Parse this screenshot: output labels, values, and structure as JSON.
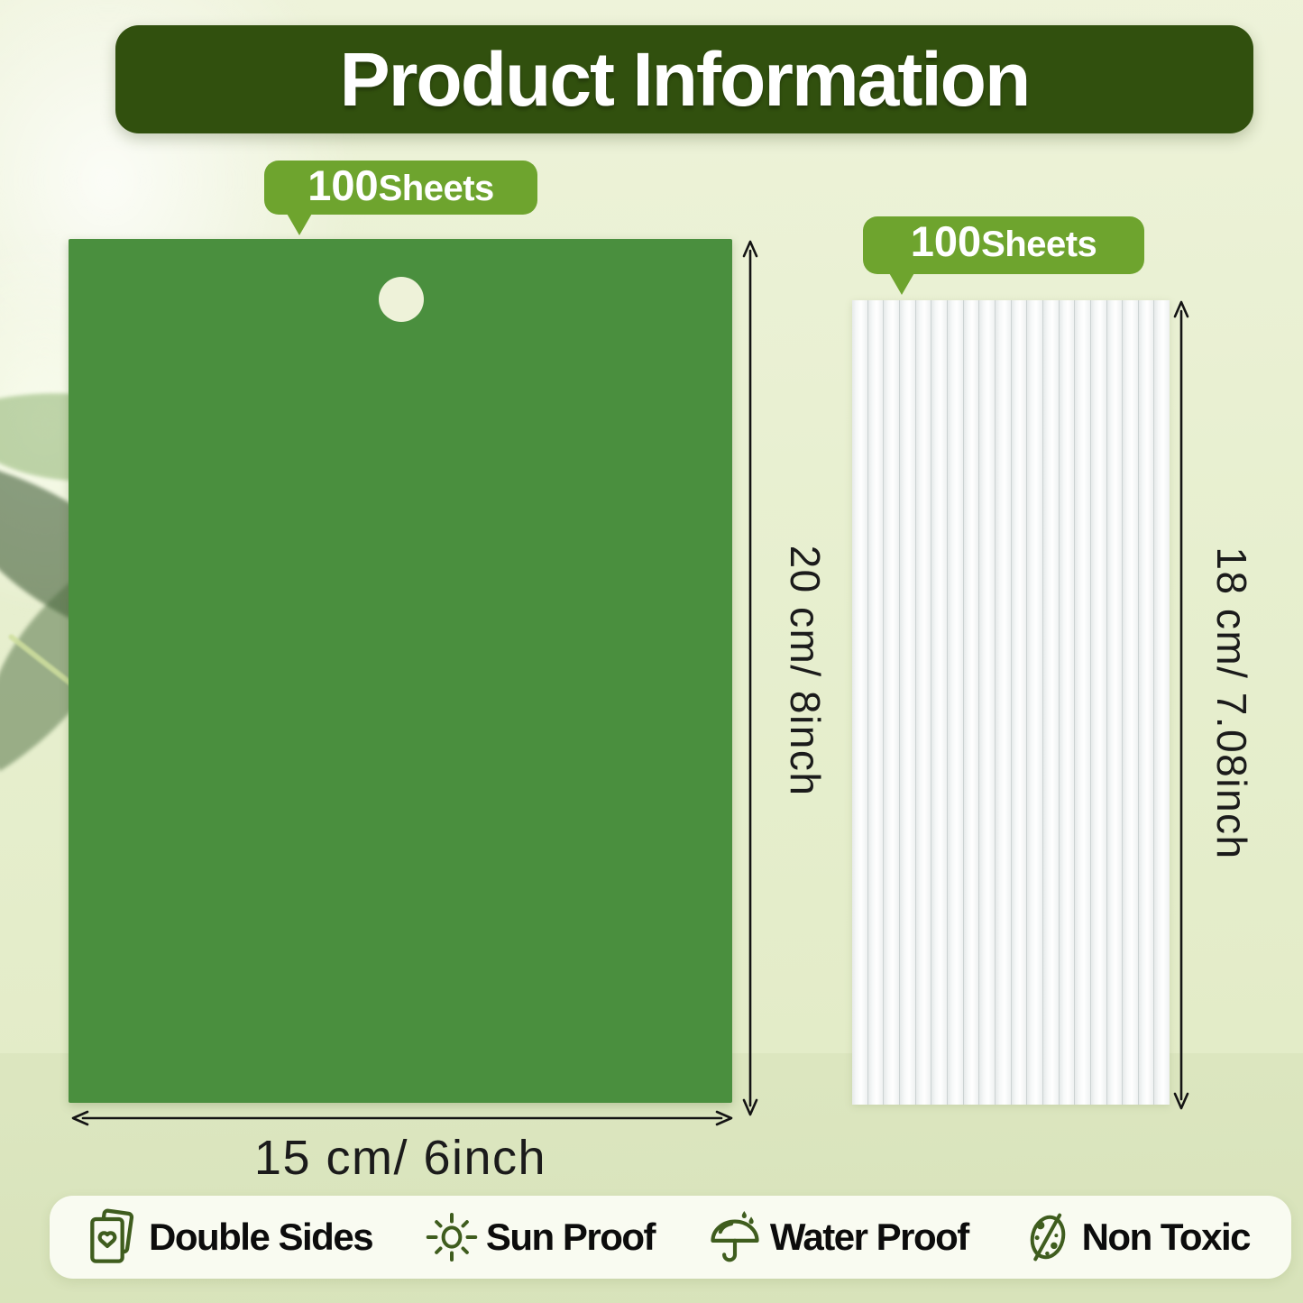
{
  "header": {
    "title": "Product Information"
  },
  "badges": {
    "sheet": {
      "number": "100",
      "word": "Sheets"
    },
    "stack": {
      "number": "100",
      "word": "Sheets"
    }
  },
  "dimensions": {
    "sheet_height": "20 cm/ 8inch",
    "sheet_width": "15 cm/ 6inch",
    "stack_height": "18 cm/ 7.08inch"
  },
  "white_stack": {
    "strip_count": 20
  },
  "features": [
    {
      "icon": "double-sides-icon",
      "label": "Double Sides"
    },
    {
      "icon": "sun-icon",
      "label": "Sun Proof"
    },
    {
      "icon": "umbrella-icon",
      "label": "Water Proof"
    },
    {
      "icon": "non-toxic-icon",
      "label": "Non Toxic"
    }
  ],
  "colors": {
    "header_bg": "#31500e",
    "badge_green": "#6ea42e",
    "sheet_green": "#4a8f3e",
    "icon_green": "#3f5d1e",
    "bar_bg": "#f9fbf1",
    "dim_text": "#1b1b1b",
    "page_bg_top": "#eef3da",
    "page_bg_bottom": "#dfe9c2"
  }
}
